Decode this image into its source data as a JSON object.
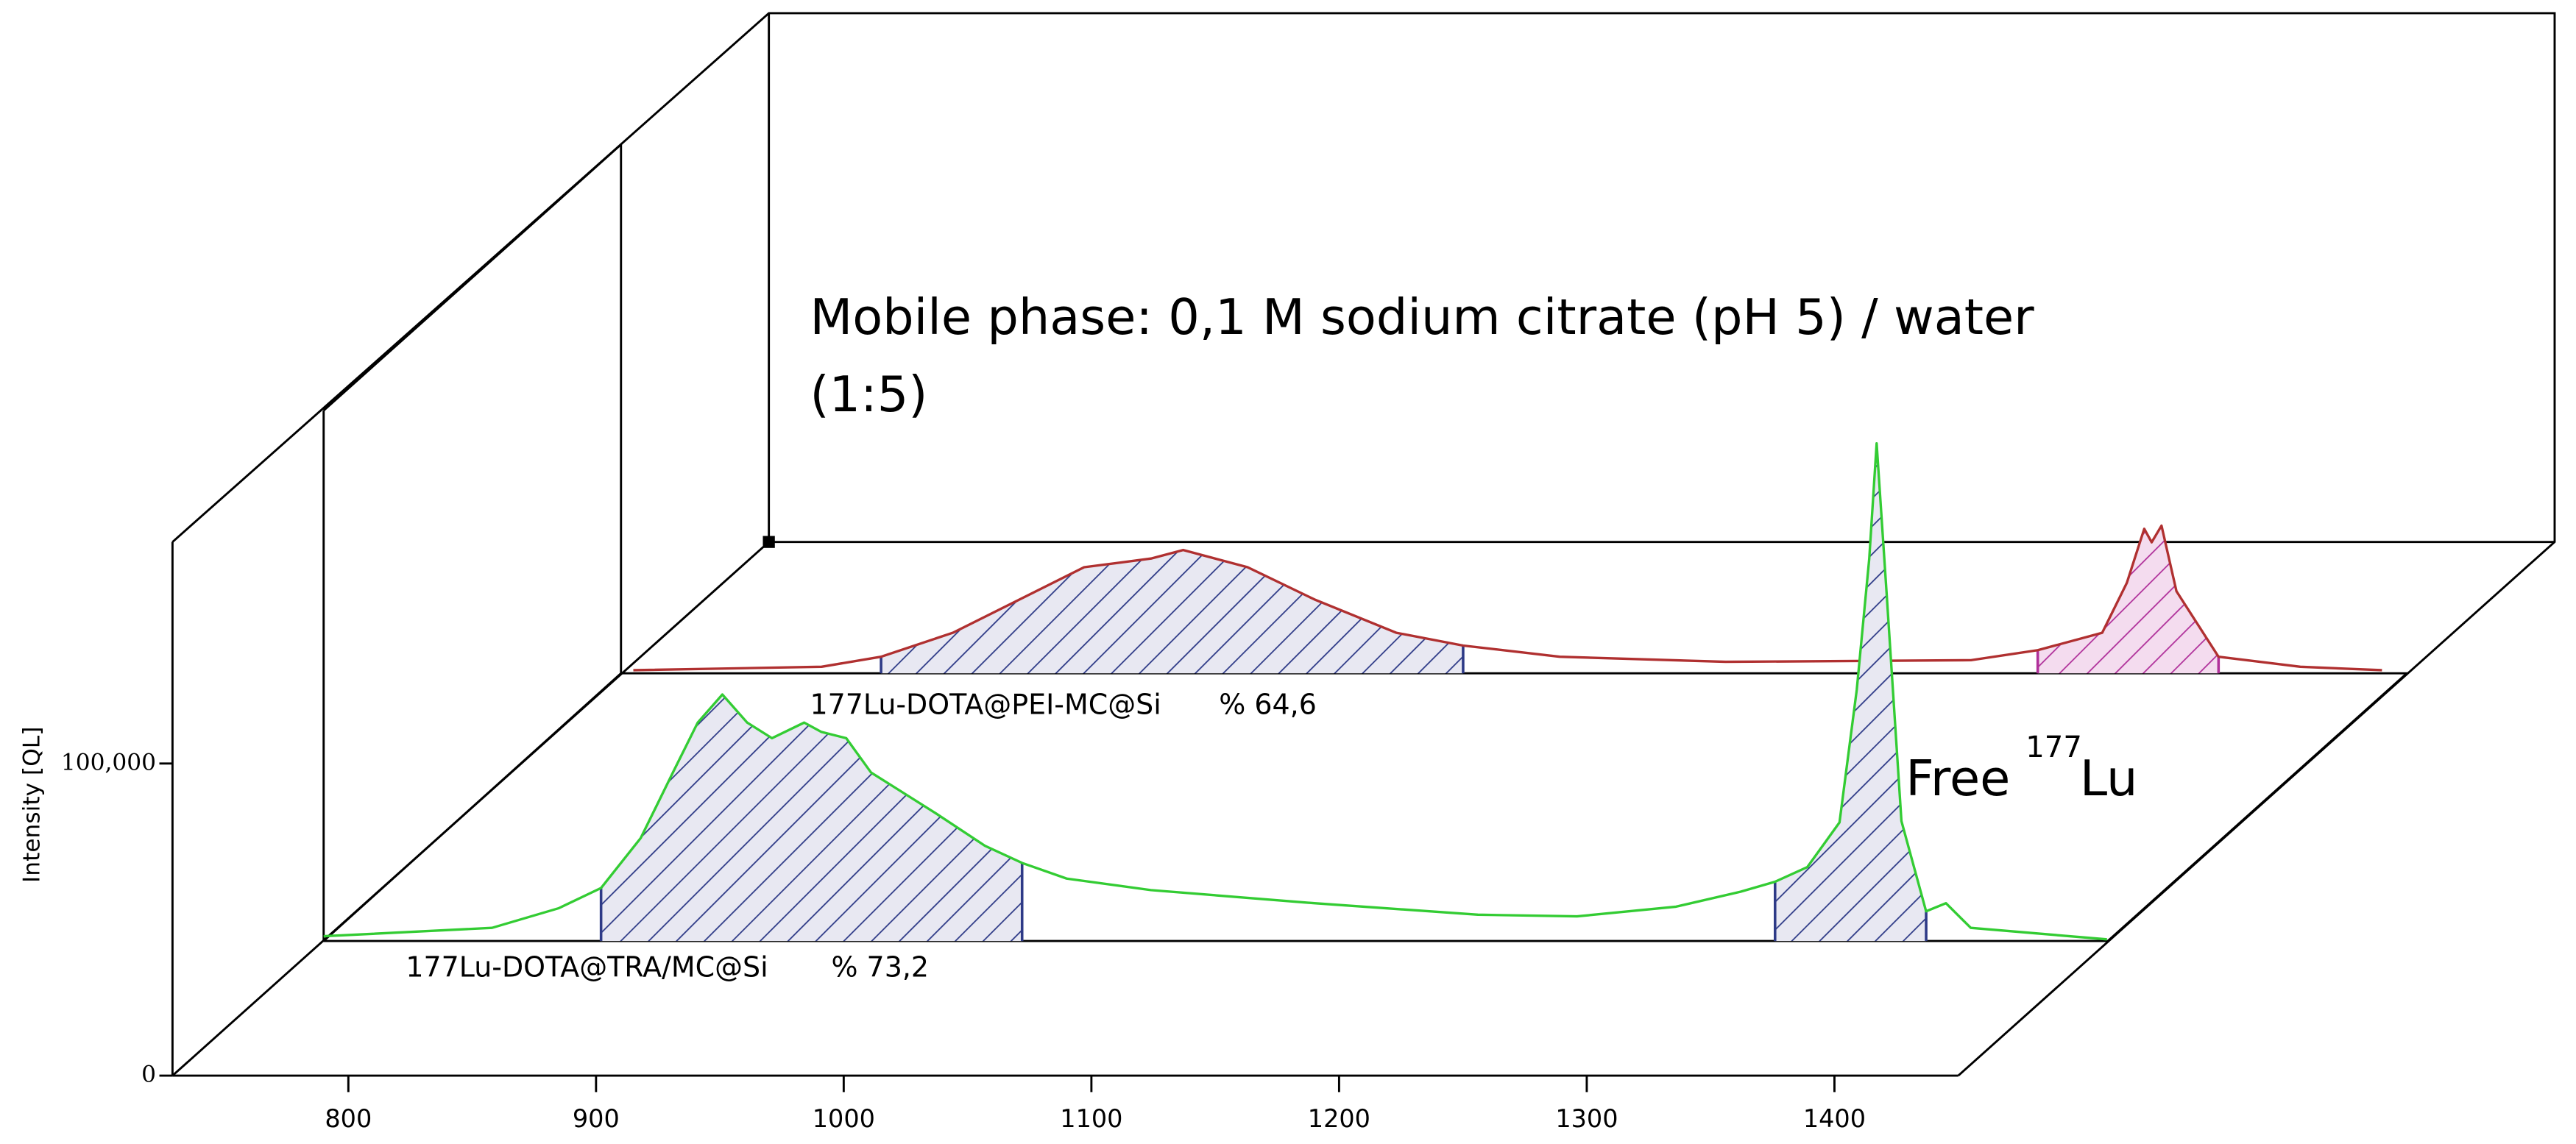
{
  "chart_data": {
    "type": "line",
    "y_label": "Intensity [QL]",
    "annotation": [
      "Mobile phase: 0,1 M sodium citrate (pH 5) / water",
      "(1:5)"
    ],
    "peak_label": {
      "text": "Free",
      "superscript": "177",
      "element": "Lu"
    },
    "xlim": [
      729,
      1450
    ],
    "xticks": [
      800,
      900,
      1000,
      1100,
      1200,
      1300,
      1400
    ],
    "ylim": [
      0,
      171000
    ],
    "yticks": [
      0,
      {
        "value": 100000,
        "label": "100,000"
      }
    ],
    "series": [
      {
        "color": "#b03030",
        "label": "177Lu-DOTA@PEI-MC@Si",
        "percent": "% 64,6",
        "x": [
          734,
          810,
          834,
          863,
          890,
          916,
          943,
          956,
          982,
          1009,
          1042,
          1069,
          1108,
          1175,
          1274,
          1301,
          1327,
          1337,
          1344,
          1347,
          1351,
          1357,
          1374,
          1407,
          1440
        ],
        "values": [
          1000,
          2100,
          5300,
          13000,
          23700,
          34000,
          36800,
          39500,
          34000,
          23700,
          13000,
          8900,
          5300,
          3700,
          4200,
          7400,
          13000,
          29000,
          46300,
          42000,
          47300,
          26300,
          5300,
          2100,
          1000
        ],
        "regions": [
          {
            "x": [
              834,
              1069
            ],
            "color": "#2e3a87"
          },
          {
            "x": [
              1301,
              1374
            ],
            "color": "#b0309a"
          }
        ]
      },
      {
        "color": "#33cc33",
        "label": "177Lu-DOTA@TRA/MC@Si",
        "percent": "% 73,2",
        "x": [
          729,
          797,
          824,
          841,
          857,
          870,
          880,
          890,
          900,
          910,
          923,
          930,
          940,
          950,
          960,
          976,
          996,
          1011,
          1029,
          1063,
          1129,
          1195,
          1235,
          1275,
          1301,
          1315,
          1328,
          1341,
          1348,
          1353,
          1356,
          1360,
          1366,
          1376,
          1384,
          1394,
          1449
        ],
        "values": [
          1500,
          4200,
          10500,
          17000,
          33000,
          54000,
          70000,
          79000,
          70000,
          65000,
          70000,
          67000,
          65000,
          54000,
          49000,
          41000,
          30500,
          25000,
          20000,
          16300,
          12100,
          8400,
          7900,
          11000,
          15800,
          19000,
          23700,
          38000,
          80500,
          122500,
          159400,
          112000,
          38400,
          9500,
          12100,
          4200,
          500
        ],
        "regions": [
          {
            "x": [
              841,
              1011
            ],
            "color": "#2e3a87"
          },
          {
            "x": [
              1315,
              1376
            ],
            "color": "#2e3a87"
          }
        ]
      }
    ]
  }
}
